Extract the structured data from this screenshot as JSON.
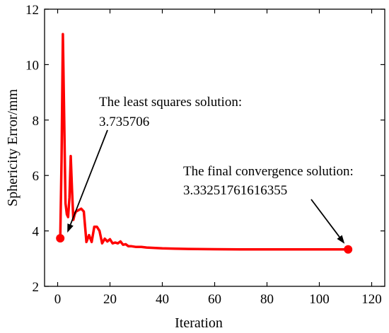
{
  "chart_data": {
    "type": "line",
    "title": "",
    "xlabel": "Iteration",
    "ylabel": "Sphericity Error/mm",
    "xlim": [
      -5,
      125
    ],
    "ylim": [
      2,
      12
    ],
    "xticks": [
      0,
      20,
      40,
      60,
      80,
      100,
      120
    ],
    "yticks": [
      2,
      4,
      6,
      8,
      10,
      12
    ],
    "grid": false,
    "legend": "none",
    "colors": {
      "series": "#ff0000",
      "axis": "#000000",
      "annotation": "#000000"
    },
    "series": [
      {
        "x": [
          1,
          1.5,
          2,
          2.5,
          3,
          3.5,
          4,
          4.5,
          5,
          5.5,
          6,
          6.5,
          7,
          8,
          9,
          10,
          11,
          12,
          13,
          14,
          15,
          16,
          17,
          18,
          19,
          20,
          21,
          22,
          23,
          24,
          25,
          26,
          27,
          28,
          30,
          32,
          34,
          36,
          38,
          40,
          45,
          50,
          60,
          70,
          80,
          90,
          100,
          111
        ],
        "y": [
          3.735706,
          6.5,
          11.1,
          8.0,
          5.0,
          4.6,
          4.5,
          5.2,
          6.7,
          5.5,
          4.4,
          4.6,
          4.7,
          4.75,
          4.8,
          4.7,
          3.6,
          3.85,
          3.6,
          4.15,
          4.15,
          4.0,
          3.55,
          3.72,
          3.62,
          3.7,
          3.55,
          3.58,
          3.55,
          3.62,
          3.5,
          3.52,
          3.45,
          3.45,
          3.42,
          3.42,
          3.4,
          3.39,
          3.38,
          3.37,
          3.36,
          3.35,
          3.34,
          3.335,
          3.335,
          3.333,
          3.333,
          3.33251761616355
        ]
      }
    ],
    "markers": [
      {
        "x": 1,
        "y": 3.735706
      },
      {
        "x": 111,
        "y": 3.33251761616355
      }
    ],
    "annotations": [
      {
        "line1": "The least squares solution:",
        "line2": "3.735706",
        "point": {
          "x": 1,
          "y": 3.735706
        }
      },
      {
        "line1": "The final convergence solution:",
        "line2": "3.33251761616355",
        "point": {
          "x": 111,
          "y": 3.33251761616355
        }
      }
    ]
  }
}
